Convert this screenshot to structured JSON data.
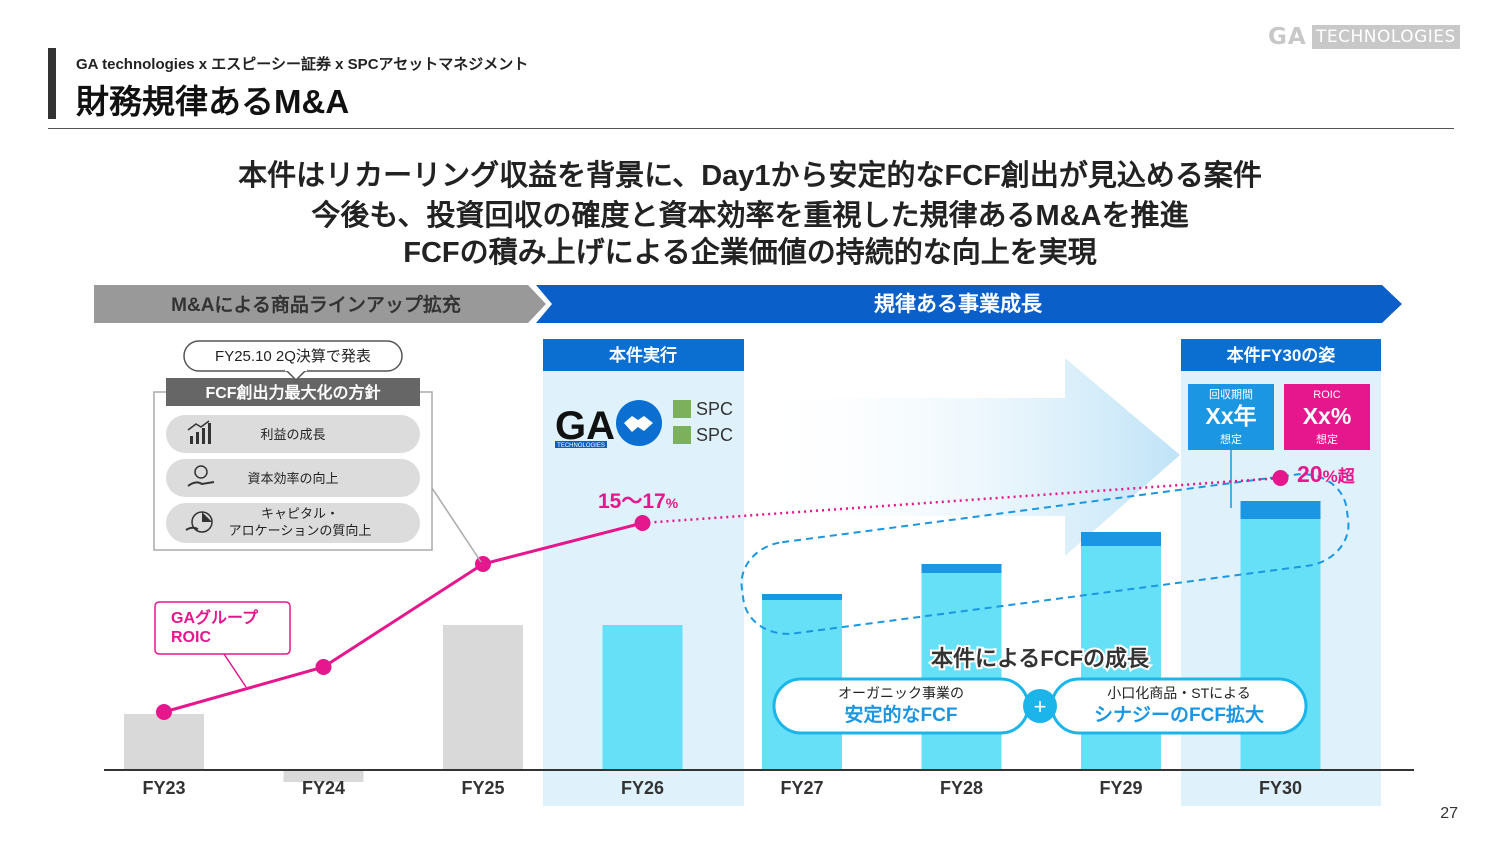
{
  "header": {
    "logo_ga": "GA",
    "logo_tech": "TECHNOLOGIES",
    "subtitle": "GA technologies x エスピーシー証券 x SPCアセットマネジメント",
    "title": "財務規律あるM&A"
  },
  "lead": [
    "本件はリカーリング収益を背景に、Day1から安定的なFCF創出が見込める案件",
    "今後も、投資回収の確度と資本効率を重視した規律あるM&Aを推進",
    "FCFの積み上げによる企業価値の持続的な向上を実現"
  ],
  "banner": {
    "left": "M&Aによる商品ラインアップ拡充",
    "right": "規律ある事業成長"
  },
  "policy": {
    "callout": "FY25.10 2Q決算で発表",
    "header": "FCF創出力最大化の方針",
    "items": [
      {
        "icon": "growth-chart-icon",
        "label": "利益の成長"
      },
      {
        "icon": "money-hand-icon",
        "label": "資本効率の向上"
      },
      {
        "icon": "capital-allocation-icon",
        "label_line1": "キャピタル・",
        "label_line2": "アロケーションの質向上"
      }
    ]
  },
  "execution_panel": {
    "header": "本件実行",
    "logo_ga": "GA",
    "logo_ga_sub": "TECHNOLOGIES",
    "logo_spc": "SPC"
  },
  "fy30_panel": {
    "header": "本件FY30の姿",
    "payback": {
      "label": "回収期間",
      "value": "Xx年",
      "note": "想定"
    },
    "roic": {
      "label": "ROIC",
      "value": "Xx%",
      "note": "想定"
    }
  },
  "annotations": {
    "roic_label_line1": "GAグループ",
    "roic_label_line2": "ROIC",
    "fy26_roic": "15～17",
    "fy26_roic_unit": "%",
    "fy30_roic": "20",
    "fy30_roic_unit": "%超",
    "fcf_growth_title": "本件によるFCFの成長",
    "organic_line1": "オーガニック事業の",
    "organic_line2": "安定的なFCF",
    "plus": "+",
    "synergy_line1": "小口化商品・STによる",
    "synergy_line2": "シナジーのFCF拡大"
  },
  "chart_data": {
    "type": "bar",
    "categories": [
      "FY23",
      "FY24",
      "FY25",
      "FY26",
      "FY27",
      "FY28",
      "FY29",
      "FY30"
    ],
    "series": [
      {
        "values": [
          56,
          -12,
          145,
          145,
          170,
          197,
          224,
          251
        ]
      },
      {
        "values": [
          0,
          0,
          0,
          0,
          6,
          9,
          14,
          18
        ]
      },
      {
        "values": [
          58,
          103,
          206,
          247,
          null,
          null,
          null,
          292
        ]
      }
    ],
    "ylim": [
      -20,
      300
    ],
    "colors": {
      "past": "#d9d9d9",
      "base": "#66e0f7",
      "synergy": "#1b96e3",
      "roic": "#e6168c",
      "panel": "#dff2fb"
    },
    "grid": false,
    "legend": "none"
  },
  "page_number": "27"
}
